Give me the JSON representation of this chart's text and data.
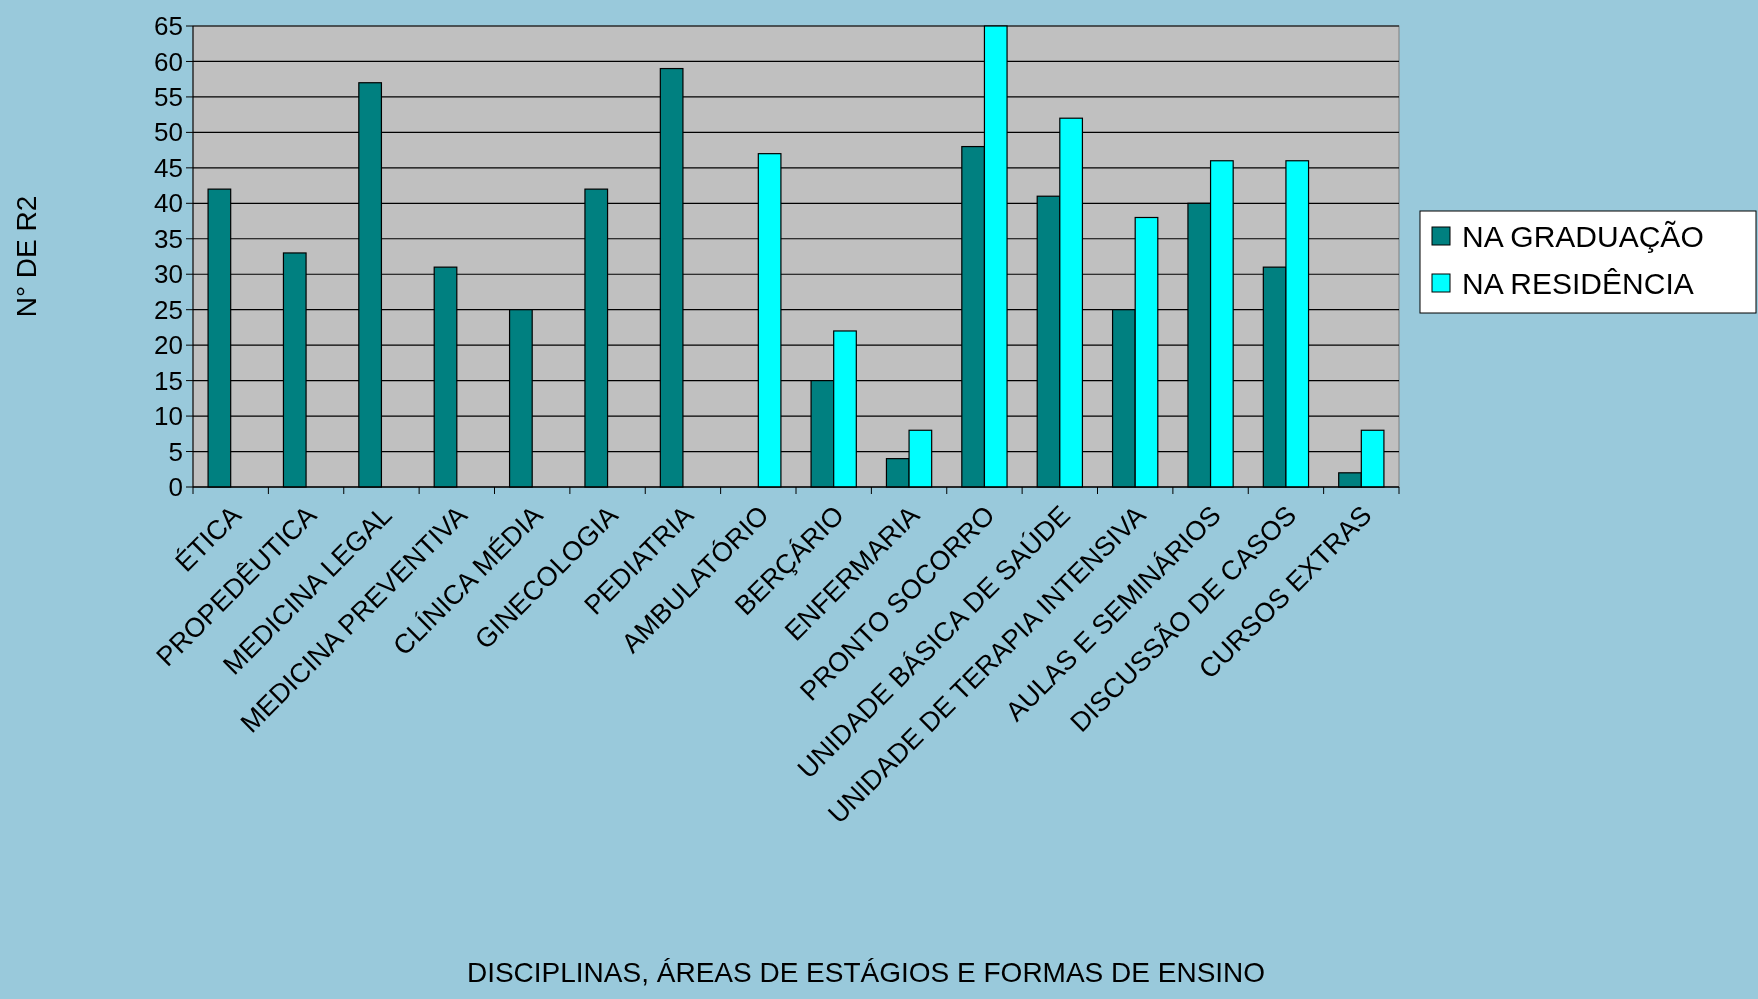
{
  "chart_data": {
    "type": "bar",
    "xlabel": "DISCIPLINAS, ÁREAS DE ESTÁGIOS E FORMAS DE ENSINO",
    "ylabel": "N° DE R2",
    "categories": [
      "ÉTICA",
      "PROPEDÊUTICA",
      "MEDICINA LEGAL",
      "MEDICINA PREVENTIVA",
      "CLÍNICA MÉDIA",
      "GINECOLOGIA",
      "PEDIATRIA",
      "AMBULATÓRIO",
      "BERÇÁRIO",
      "ENFERMARIA",
      "PRONTO SOCORRO",
      "UNIDADE BÁSICA DE SAÚDE",
      "UNIDADE DE TERAPIA INTENSIVA",
      "AULAS E SEMINÁRIOS",
      "DISCUSSÃO DE CASOS",
      "CURSOS EXTRAS"
    ],
    "series": [
      {
        "name": "NA GRADUAÇÃO",
        "color": "#008080",
        "values": [
          42,
          33,
          57,
          31,
          25,
          42,
          59,
          null,
          15,
          4,
          48,
          41,
          25,
          40,
          31,
          2
        ]
      },
      {
        "name": "NA RESIDÊNCIA",
        "color": "#00ffff",
        "values": [
          null,
          null,
          null,
          null,
          null,
          null,
          null,
          47,
          22,
          8,
          65,
          52,
          38,
          46,
          46,
          8
        ]
      }
    ],
    "ylim": [
      0,
      65
    ],
    "yticks": [
      0,
      5,
      10,
      15,
      20,
      25,
      30,
      35,
      40,
      45,
      50,
      55,
      60,
      65
    ],
    "grid": "y",
    "legend": "right"
  }
}
